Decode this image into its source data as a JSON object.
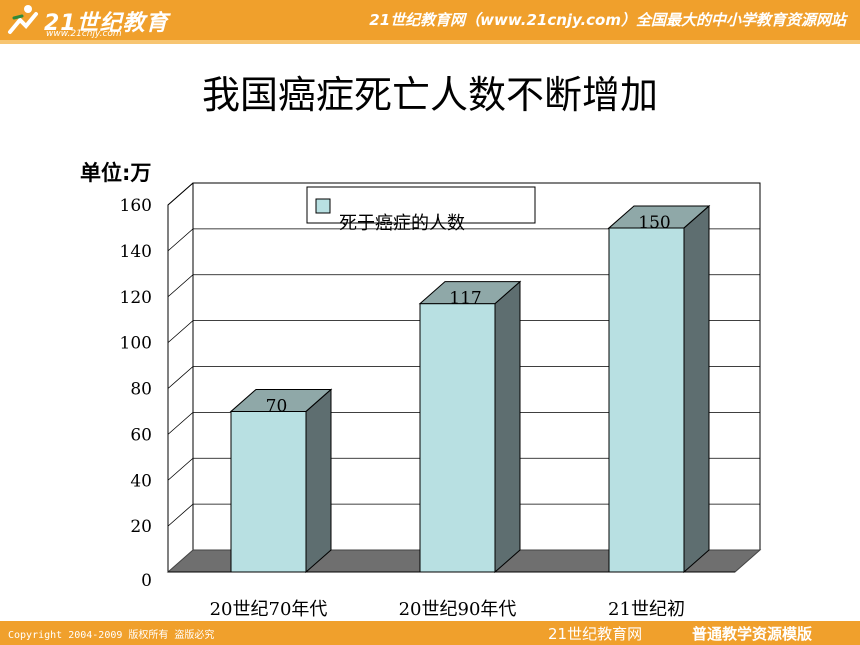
{
  "header": {
    "logo_text": "21世纪教育",
    "logo_url": "www.21cnjy.com",
    "slogan": "21世纪教育网（www.21cnjy.com）全国最大的中小学教育资源网站"
  },
  "title": "我国癌症死亡人数不断增加",
  "unit_label": "单位:万",
  "footer": {
    "copyright": "Copyright 2004-2009 版权所有 盗版必究",
    "brand": "21世纪教育网",
    "template": "普通教学资源模版"
  },
  "colors": {
    "bar_front": "#b8e0e2",
    "bar_side": "#5e6e70",
    "bar_top": "#8fa8a8",
    "floor": "#6f6f6f",
    "header": "#f0a02c"
  },
  "chart_data": {
    "type": "bar",
    "title": "",
    "xlabel": "",
    "ylabel": "单位:万",
    "categories": [
      "20世纪70年代",
      "20世纪90年代",
      "21世纪初"
    ],
    "series": [
      {
        "name": "死于癌症的人数",
        "values": [
          70,
          117,
          150
        ]
      }
    ],
    "data_labels": [
      "70",
      "117",
      "150"
    ],
    "ylim": [
      0,
      160
    ],
    "yticks": [
      "0",
      "20",
      "40",
      "60",
      "80",
      "100",
      "120",
      "140",
      "160"
    ],
    "grid": true,
    "legend_position": "top"
  }
}
